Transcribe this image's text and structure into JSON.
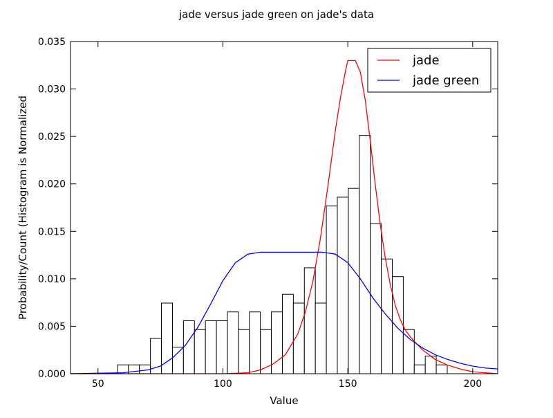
{
  "chart_data": {
    "type": "bar",
    "title": "jade versus jade green on jade's data",
    "xlabel": "Value",
    "ylabel": "Probability/Count (Histogram is Normalized",
    "xlim": [
      39,
      210
    ],
    "ylim": [
      0,
      0.035
    ],
    "x_ticks": [
      50,
      100,
      150,
      200
    ],
    "x_tick_labels": [
      "50",
      "100",
      "150",
      "200"
    ],
    "y_ticks": [
      0,
      0.005,
      0.01,
      0.015,
      0.02,
      0.025,
      0.03,
      0.035
    ],
    "y_tick_labels": [
      "0.000",
      "0.005",
      "0.010",
      "0.015",
      "0.020",
      "0.025",
      "0.030",
      "0.035"
    ],
    "grid": false,
    "legend_position": "top-right",
    "histogram": {
      "bin_edges": [
        57.8,
        62.2,
        66.6,
        71.0,
        75.4,
        79.8,
        84.2,
        88.6,
        93.0,
        97.4,
        101.8,
        106.2,
        110.6,
        115.0,
        119.4,
        123.8,
        128.2,
        132.6,
        137.0,
        141.4,
        145.8,
        150.2,
        154.6,
        159.0,
        163.4,
        167.8,
        172.2,
        176.6,
        181.0,
        185.4,
        189.8
      ],
      "values": [
        0.00093,
        0.00093,
        0.00093,
        0.00372,
        0.00744,
        0.00279,
        0.00558,
        0.00465,
        0.00558,
        0.00558,
        0.00651,
        0.00465,
        0.00651,
        0.00465,
        0.00651,
        0.00837,
        0.00744,
        0.01116,
        0.00744,
        0.01767,
        0.0186,
        0.01953,
        0.02511,
        0.01581,
        0.01209,
        0.01023,
        0.00465,
        0.00093,
        0.00186,
        0.00093
      ]
    },
    "series": [
      {
        "name": "jade",
        "color": "#ff0000",
        "x": [
          39,
          100,
          110,
          115,
          120,
          125,
          130,
          133,
          136,
          139,
          142,
          145,
          147,
          149,
          150,
          152,
          153,
          155,
          157,
          159,
          161,
          163,
          165,
          167,
          169,
          171,
          173,
          175,
          177,
          180,
          185,
          190,
          195,
          200,
          210
        ],
        "y": [
          0,
          0,
          0.0001,
          0.0004,
          0.001,
          0.002,
          0.0042,
          0.0065,
          0.0097,
          0.0142,
          0.0197,
          0.0256,
          0.029,
          0.0318,
          0.033,
          0.033,
          0.033,
          0.0318,
          0.0288,
          0.0245,
          0.0199,
          0.0157,
          0.0122,
          0.0094,
          0.0072,
          0.0057,
          0.0046,
          0.0039,
          0.0033,
          0.0025,
          0.0015,
          0.0009,
          0.0005,
          0.0002,
          0
        ]
      },
      {
        "name": "jade green",
        "color": "#0000ff",
        "x": [
          39,
          60,
          70,
          75,
          80,
          85,
          90,
          95,
          100,
          105,
          110,
          115,
          120,
          130,
          140,
          145,
          150,
          155,
          160,
          165,
          170,
          175,
          180,
          185,
          190,
          195,
          200,
          205,
          210
        ],
        "y": [
          0,
          0.0001,
          0.0004,
          0.0008,
          0.0017,
          0.003,
          0.0049,
          0.0073,
          0.0098,
          0.0117,
          0.0126,
          0.0128,
          0.0128,
          0.0128,
          0.0128,
          0.0126,
          0.0117,
          0.01,
          0.008,
          0.0063,
          0.0048,
          0.0036,
          0.0027,
          0.002,
          0.0015,
          0.0011,
          0.0008,
          0.0006,
          0.0005
        ]
      }
    ]
  },
  "colors": {
    "histogram_fill": "#ffffff",
    "histogram_edge": "#000000",
    "axes": "#000000"
  }
}
